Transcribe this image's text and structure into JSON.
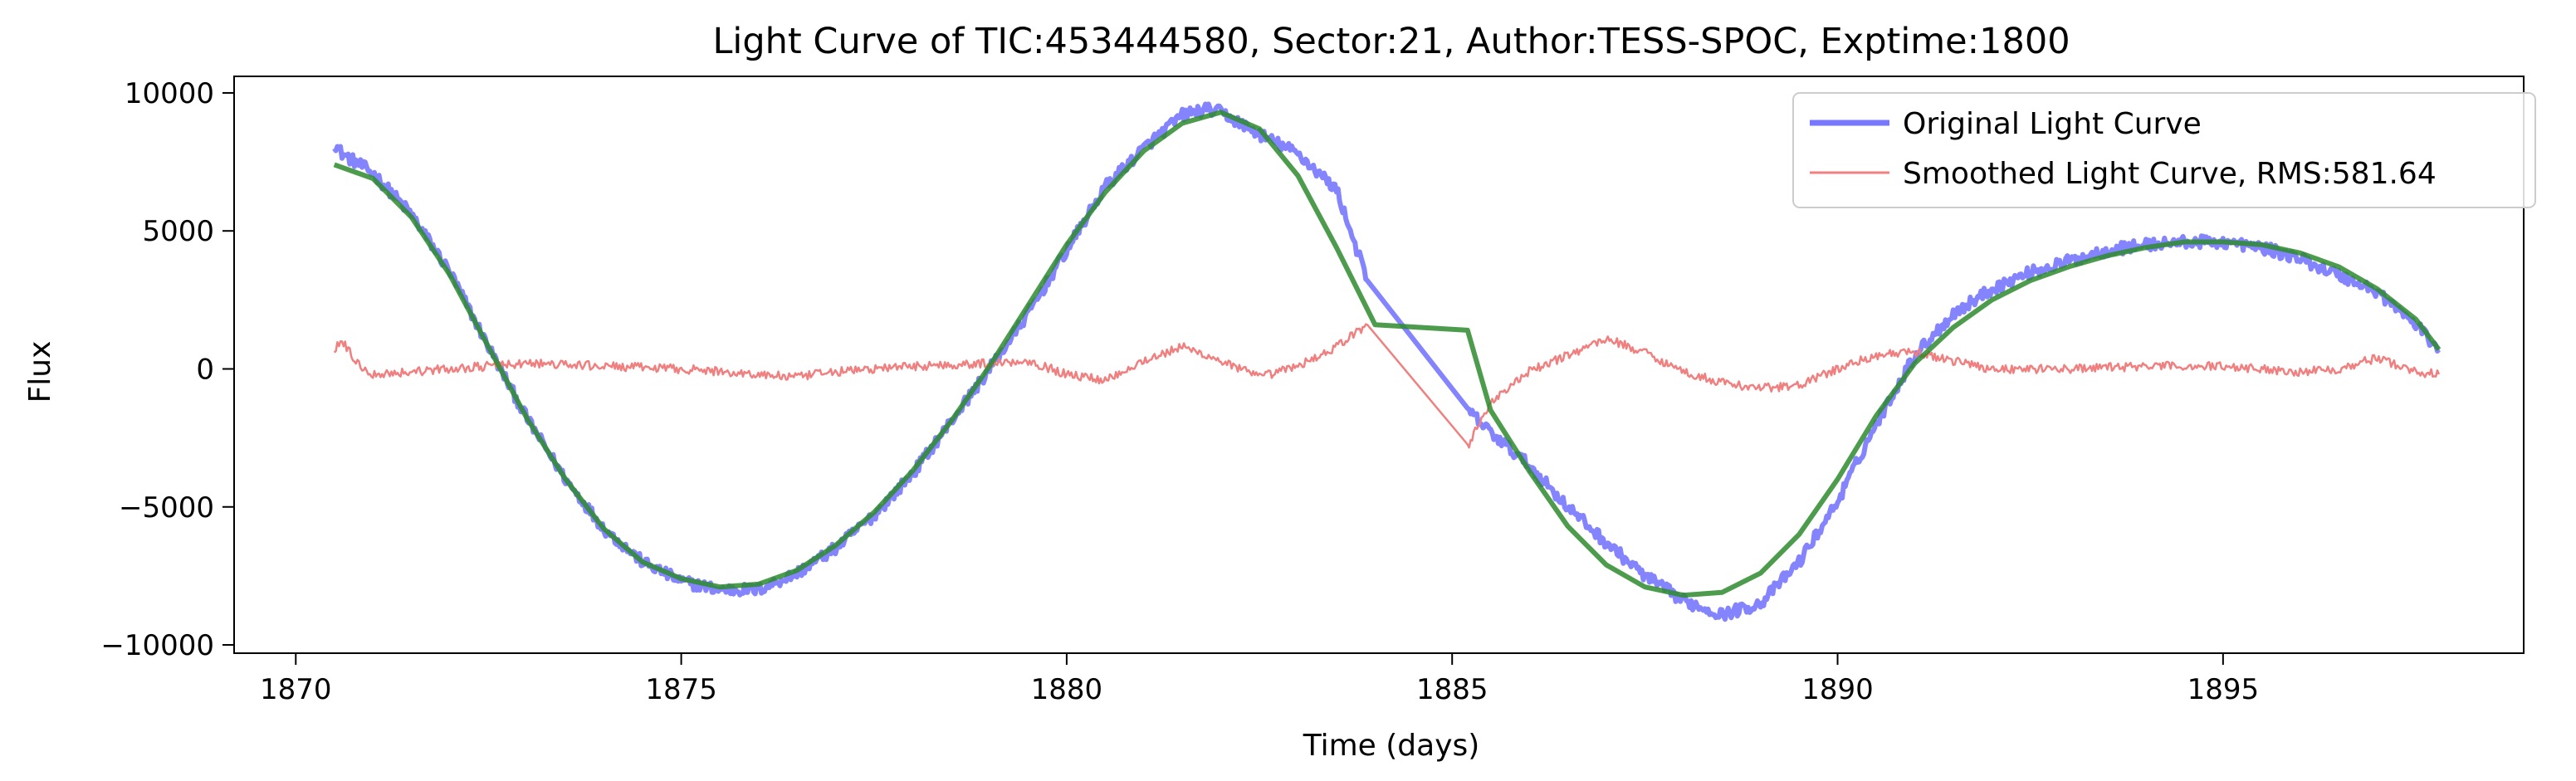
{
  "chart_data": {
    "type": "line",
    "title": "Light Curve of TIC:453444580, Sector:21, Author:TESS-SPOC, Exptime:1800",
    "xlabel": "Time (days)",
    "ylabel": "Flux",
    "xlim": [
      1869.2,
      1898.9
    ],
    "ylim": [
      -10300,
      10600
    ],
    "xticks": [
      1870,
      1875,
      1880,
      1885,
      1890,
      1895
    ],
    "yticks": [
      -10000,
      -5000,
      0,
      5000,
      10000
    ],
    "grid": false,
    "legend_position": "upper-right",
    "series": [
      {
        "name": "Original Light Curve",
        "color": "#7777ff",
        "style": "noisy",
        "x": [
          1870.5,
          1870.6,
          1871.0,
          1871.5,
          1872.0,
          1872.5,
          1873.0,
          1873.5,
          1874.0,
          1874.5,
          1875.0,
          1875.5,
          1876.0,
          1876.5,
          1877.0,
          1877.5,
          1878.0,
          1878.5,
          1879.0,
          1879.5,
          1880.0,
          1880.5,
          1881.0,
          1881.5,
          1881.8,
          1882.0,
          1882.5,
          1883.0,
          1883.5,
          1883.9,
          1885.2,
          1885.5,
          1886.0,
          1886.5,
          1887.0,
          1887.5,
          1888.0,
          1888.5,
          1889.0,
          1889.5,
          1890.0,
          1890.5,
          1891.0,
          1891.5,
          1892.0,
          1892.5,
          1893.0,
          1893.5,
          1894.0,
          1894.5,
          1895.0,
          1895.5,
          1896.0,
          1896.5,
          1897.0,
          1897.5,
          1897.8
        ],
        "y": [
          8200,
          7800,
          7100,
          5600,
          3500,
          800,
          -1800,
          -4000,
          -5800,
          -7000,
          -7700,
          -8000,
          -8000,
          -7400,
          -6500,
          -5300,
          -3800,
          -1900,
          0,
          2000,
          4300,
          6600,
          8000,
          9200,
          9400,
          9300,
          8500,
          7800,
          6500,
          3200,
          -1500,
          -2300,
          -3500,
          -5000,
          -6300,
          -7500,
          -8400,
          -8900,
          -8500,
          -7000,
          -4800,
          -2000,
          500,
          2000,
          2900,
          3500,
          3900,
          4300,
          4500,
          4600,
          4600,
          4400,
          4000,
          3400,
          2800,
          1600,
          700
        ],
        "noise": 220
      },
      {
        "name": "Smoothed Light Curve, RMS:581.64",
        "color": "#f08080",
        "style": "noisy",
        "x": [
          1870.5,
          1870.6,
          1870.8,
          1871.0,
          1871.5,
          1872.0,
          1873.0,
          1874.0,
          1875.0,
          1876.0,
          1876.5,
          1877.0,
          1878.0,
          1879.0,
          1879.5,
          1880.0,
          1880.5,
          1881.0,
          1881.5,
          1882.0,
          1882.5,
          1883.0,
          1883.5,
          1883.9,
          1885.2,
          1885.5,
          1886.0,
          1886.5,
          1887.0,
          1887.5,
          1888.0,
          1888.5,
          1889.0,
          1889.5,
          1890.0,
          1890.5,
          1891.0,
          1891.5,
          1892.0,
          1893.0,
          1894.0,
          1895.0,
          1896.0,
          1896.5,
          1897.0,
          1897.5,
          1897.8
        ],
        "y": [
          700,
          1000,
          200,
          -200,
          -100,
          0,
          200,
          100,
          0,
          -200,
          -300,
          -100,
          100,
          200,
          300,
          -200,
          -400,
          300,
          800,
          300,
          -300,
          100,
          800,
          1600,
          -2800,
          -1200,
          -100,
          500,
          1100,
          600,
          -100,
          -500,
          -700,
          -600,
          0,
          500,
          600,
          300,
          0,
          0,
          100,
          100,
          -100,
          0,
          400,
          -100,
          -200
        ],
        "noise": 160
      },
      {
        "name": "",
        "color": "#2e8b2e",
        "style": "smooth",
        "x": [
          1870.5,
          1871.0,
          1871.5,
          1872.0,
          1872.5,
          1873.0,
          1873.5,
          1874.0,
          1874.5,
          1875.0,
          1875.5,
          1876.0,
          1876.5,
          1877.0,
          1877.5,
          1878.0,
          1878.5,
          1879.0,
          1879.5,
          1880.0,
          1880.5,
          1881.0,
          1881.5,
          1882.0,
          1882.5,
          1883.0,
          1883.5,
          1884.0,
          1885.2,
          1885.5,
          1886.0,
          1886.5,
          1887.0,
          1887.5,
          1888.0,
          1888.5,
          1889.0,
          1889.5,
          1890.0,
          1890.5,
          1891.0,
          1891.5,
          1892.0,
          1892.5,
          1893.0,
          1893.5,
          1894.0,
          1894.5,
          1895.0,
          1895.5,
          1896.0,
          1896.5,
          1897.0,
          1897.5,
          1897.8
        ],
        "y": [
          7400,
          6900,
          5500,
          3400,
          800,
          -1800,
          -4000,
          -5800,
          -7000,
          -7600,
          -7900,
          -7800,
          -7300,
          -6400,
          -5200,
          -3700,
          -1900,
          100,
          2300,
          4500,
          6400,
          7900,
          8900,
          9300,
          8700,
          7000,
          4400,
          1600,
          1400,
          -1500,
          -3700,
          -5700,
          -7100,
          -7900,
          -8200,
          -8100,
          -7400,
          -6000,
          -4000,
          -1700,
          200,
          1500,
          2500,
          3200,
          3700,
          4100,
          4400,
          4600,
          4600,
          4500,
          4200,
          3700,
          2900,
          1800,
          700
        ]
      }
    ]
  }
}
